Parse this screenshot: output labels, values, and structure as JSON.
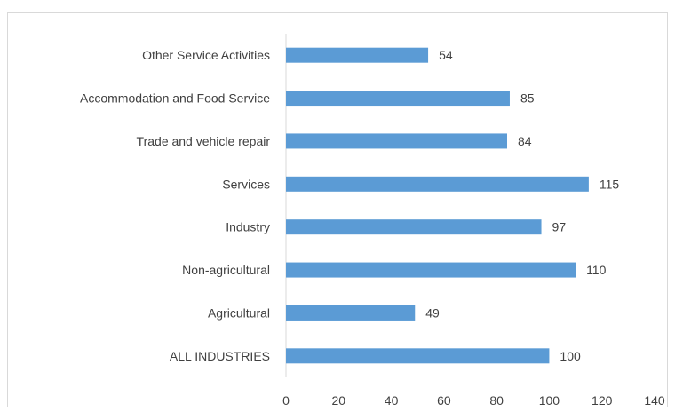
{
  "chart_data": {
    "type": "bar",
    "orientation": "horizontal",
    "title": "",
    "xlabel": "",
    "ylabel": "",
    "categories": [
      "ALL INDUSTRIES",
      "Agricultural",
      "Non-agricultural",
      "Industry",
      "Services",
      "Trade and vehicle repair",
      "Accommodation and Food Service",
      "Other Service Activities"
    ],
    "values": [
      100,
      49,
      110,
      97,
      115,
      84,
      85,
      54
    ],
    "xlim": [
      0,
      140
    ],
    "xticks": [
      0,
      20,
      40,
      60,
      80,
      100,
      120,
      140
    ],
    "data_labels": true,
    "grid": false,
    "legend": "none",
    "bar_color": "#5b9bd5"
  }
}
